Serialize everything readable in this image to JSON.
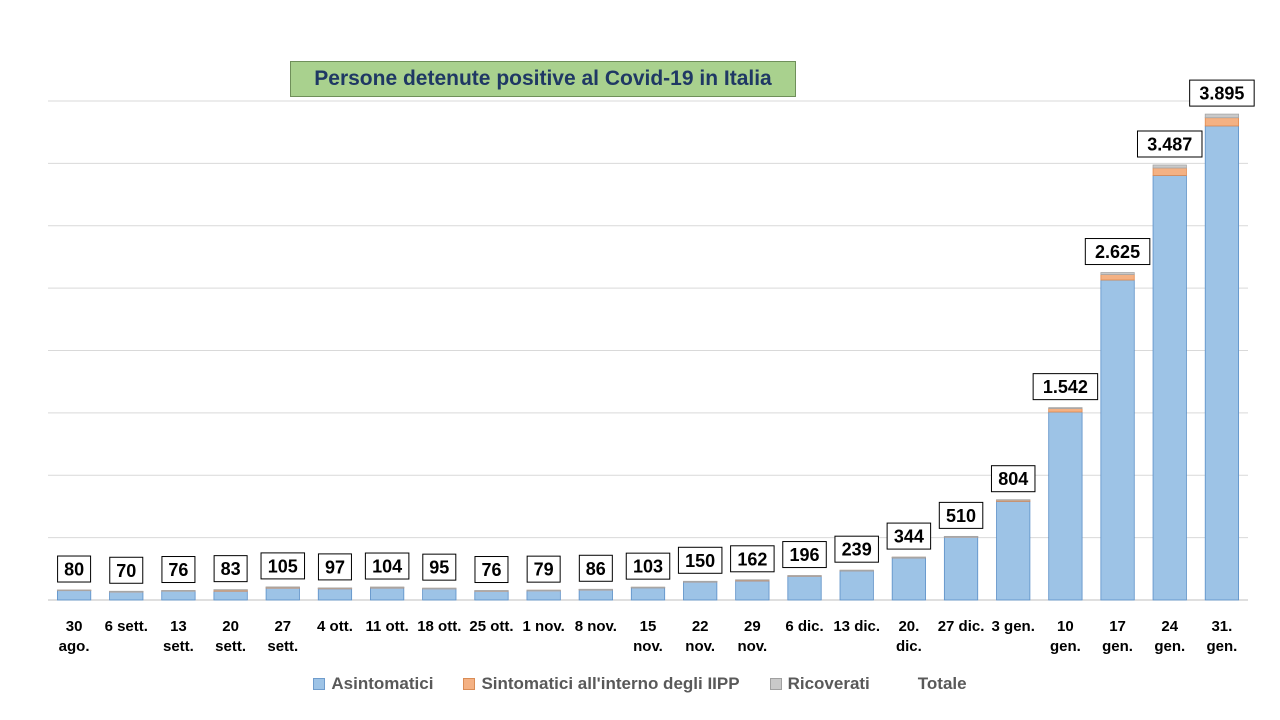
{
  "chart_data": {
    "type": "bar",
    "stacked": true,
    "title": "Persone detenute positive  al Covid-19 in Italia",
    "categories": [
      [
        "30",
        "ago."
      ],
      [
        "6 sett."
      ],
      [
        "13",
        "sett."
      ],
      [
        "20",
        "sett."
      ],
      [
        "27",
        "sett."
      ],
      [
        "4 ott."
      ],
      [
        "11 ott."
      ],
      [
        "18 ott."
      ],
      [
        "25 ott."
      ],
      [
        "1 nov."
      ],
      [
        "8 nov."
      ],
      [
        "15",
        "nov."
      ],
      [
        "22",
        "nov."
      ],
      [
        "29",
        "nov."
      ],
      [
        "6 dic."
      ],
      [
        "13 dic."
      ],
      [
        "20.",
        "dic."
      ],
      [
        "27 dic."
      ],
      [
        "3 gen."
      ],
      [
        "10",
        "gen."
      ],
      [
        "17",
        "gen."
      ],
      [
        "24",
        "gen."
      ],
      [
        "31.",
        "gen."
      ]
    ],
    "series": [
      {
        "name": "Asintomatici",
        "color": "#9dc3e6",
        "values": [
          78,
          68,
          74,
          71,
          96,
          90,
          97,
          91,
          72,
          76,
          82,
          98,
          145,
          153,
          190,
          234,
          338,
          504,
          791,
          1507,
          2565,
          3403,
          3800
        ]
      },
      {
        "name": "Sintomatici all'interno degli IIPP",
        "color": "#f4b183",
        "values": [
          1,
          1,
          1,
          10,
          7,
          5,
          5,
          3,
          2,
          2,
          3,
          4,
          4,
          8,
          5,
          4,
          5,
          5,
          10,
          28,
          44,
          60,
          66
        ]
      },
      {
        "name": "Ricoverati",
        "color": "#c9c9c9",
        "values": [
          1,
          1,
          1,
          2,
          2,
          2,
          2,
          1,
          2,
          1,
          1,
          1,
          1,
          1,
          1,
          1,
          1,
          1,
          3,
          7,
          16,
          24,
          29
        ]
      }
    ],
    "totals": {
      "name": "Totale",
      "labels": [
        "80",
        "70",
        "76",
        "83",
        "105",
        "97",
        "104",
        "95",
        "76",
        "79",
        "86",
        "103",
        "150",
        "162",
        "196",
        "239",
        "344",
        "510",
        "804",
        "1.542",
        "2.625",
        "3.487",
        "3.895"
      ],
      "values": [
        80,
        70,
        76,
        83,
        105,
        97,
        104,
        95,
        76,
        79,
        86,
        103,
        150,
        162,
        196,
        239,
        344,
        510,
        804,
        1542,
        2625,
        3487,
        3895
      ]
    },
    "ylim": [
      0,
      4000
    ],
    "grid": true,
    "legend_position": "bottom"
  }
}
